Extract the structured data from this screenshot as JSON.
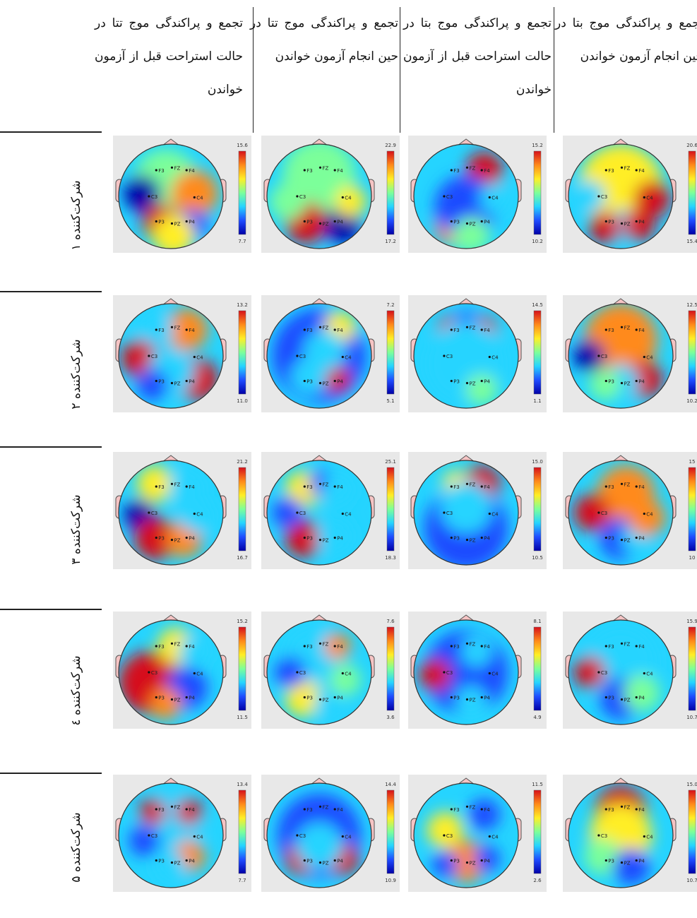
{
  "columns": [
    {
      "title": "تجمع و پراکندگی موج تتا در حالت استراحت قبل از آزمون خواندن"
    },
    {
      "title": "تجمع و پراکندگی موج تتا در حین انجام آزمون خواندن"
    },
    {
      "title": "تجمع و پراکندگی موج بتا در حالت استراحت قبل از آزمون خواندن"
    },
    {
      "title": "تجمع و پراکندگی موج بتا در حین انجام آزمون خواندن"
    }
  ],
  "rows": [
    {
      "label": "شرکت‌کننده ۱",
      "maps": [
        {
          "max": "15.6",
          "min": "7.7"
        },
        {
          "max": "22.9",
          "min": "17.2"
        },
        {
          "max": "15.2",
          "min": "10.2"
        },
        {
          "max": "20.6",
          "min": "15.4"
        }
      ]
    },
    {
      "label": "شرکت‌کننده ۲",
      "maps": [
        {
          "max": "13.2",
          "min": "11.0"
        },
        {
          "max": "7.2",
          "min": "5.1"
        },
        {
          "max": "14.5",
          "min": "1.1"
        },
        {
          "max": "12.5",
          "min": "10.2"
        }
      ]
    },
    {
      "label": "شرکت‌کننده ۳",
      "maps": [
        {
          "max": "21.2",
          "min": "16.7"
        },
        {
          "max": "25.1",
          "min": "18.3"
        },
        {
          "max": "15.0",
          "min": "10.5"
        },
        {
          "max": "15",
          "min": "10"
        }
      ]
    },
    {
      "label": "شرکت‌کننده ٤",
      "maps": [
        {
          "max": "15.2",
          "min": "11.5"
        },
        {
          "max": "7.6",
          "min": "3.6"
        },
        {
          "max": "8.1",
          "min": "4.9"
        },
        {
          "max": "15.9",
          "min": "10.7"
        }
      ]
    },
    {
      "label": "شرکت‌کننده ۵",
      "maps": [
        {
          "max": "13.4",
          "min": "7.7"
        },
        {
          "max": "14.4",
          "min": "10.9"
        },
        {
          "max": "11.5",
          "min": "2.6"
        },
        {
          "max": "15.0",
          "min": "10.7"
        }
      ]
    }
  ],
  "electrodes": [
    "F3",
    "FZ",
    "F4",
    "C3",
    "C4",
    "P3",
    "PZ",
    "P4"
  ],
  "colors": {
    "scale": [
      "#0000a8",
      "#1f4cff",
      "#25d4ff",
      "#7cff9a",
      "#ffee25",
      "#ff8a1a",
      "#d6101a"
    ],
    "background": "#e8e8e8",
    "ear": "#f5c4c4"
  }
}
